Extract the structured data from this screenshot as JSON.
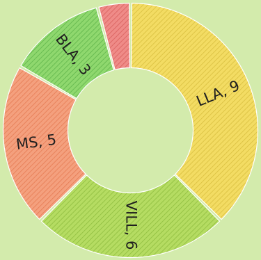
{
  "chart_data": {
    "type": "pie",
    "variant": "donut",
    "slices": [
      {
        "label": "LLA",
        "value": 9,
        "text": "LLA, 9",
        "color": "#f3dc63",
        "hatch": "#d9bf3f"
      },
      {
        "label": "VILL",
        "value": 6,
        "text": "VILL, 6",
        "color": "#b5dc62",
        "hatch": "#8fbd3f"
      },
      {
        "label": "MS",
        "value": 5,
        "text": "MS, 5",
        "color": "#f4a07e",
        "hatch": "#e57b53"
      },
      {
        "label": "BLA",
        "value": 3,
        "text": "BLA, 3",
        "color": "#8fd86e",
        "hatch": "#5fb44a"
      },
      {
        "label": "",
        "value": 1,
        "text": "",
        "color": "#ef8b88",
        "hatch": "#d85f5c"
      }
    ],
    "background": "#d3ebac"
  }
}
